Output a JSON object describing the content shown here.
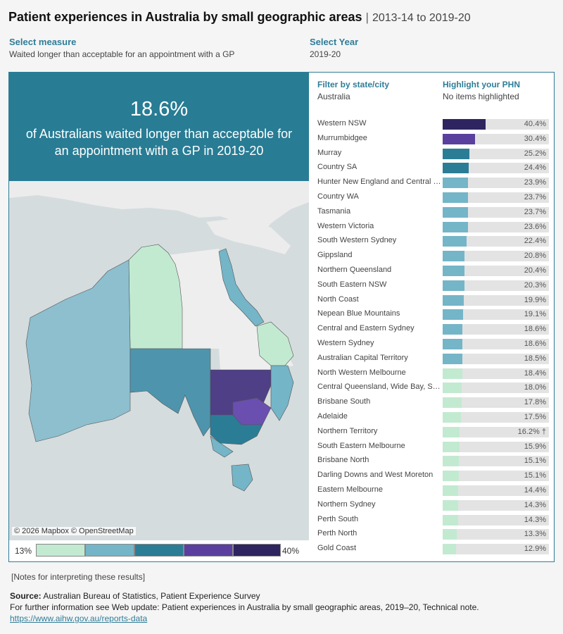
{
  "header": {
    "title": "Patient experiences in Australia by small geographic areas",
    "separator": "|",
    "range": "2013-14 to 2019-20"
  },
  "controls": {
    "measure": {
      "label": "Select measure",
      "value": "Waited longer than acceptable for an appointment with a GP"
    },
    "year": {
      "label": "Select Year",
      "value": "2019-20"
    }
  },
  "headline": {
    "percent": "18.6%",
    "text": "of Australians waited longer than acceptable for an appointment with a GP in 2019-20"
  },
  "map": {
    "credit": "© 2026 Mapbox © OpenStreetMap"
  },
  "legend": {
    "min_label": "13%",
    "max_label": "40%",
    "colors": [
      "#c2ead0",
      "#74b5c8",
      "#2b7d96",
      "#5a3f9e",
      "#2d2460"
    ]
  },
  "filters": {
    "state": {
      "label": "Filter by state/city",
      "value": "Australia"
    },
    "phn": {
      "label": "Highlight your PHN",
      "value": "No items highlighted"
    }
  },
  "chart_data": {
    "type": "bar",
    "orientation": "horizontal",
    "title": "",
    "xlabel": "",
    "ylabel": "",
    "xlim": [
      0,
      100
    ],
    "categories": [
      "Western NSW",
      "Murrumbidgee",
      "Murray",
      "Country SA",
      "Hunter New England and Central Coast",
      "Country WA",
      "Tasmania",
      "Western Victoria",
      "South Western Sydney",
      "Gippsland",
      "Northern Queensland",
      "South Eastern NSW",
      "North Coast",
      "Nepean Blue Mountains",
      "Central and Eastern Sydney",
      "Western Sydney",
      "Australian Capital Territory",
      "North Western Melbourne",
      "Central Queensland, Wide Bay, Sunshine Coast",
      "Brisbane South",
      "Adelaide",
      "Northern Territory",
      "South Eastern Melbourne",
      "Brisbane North",
      "Darling Downs and West Moreton",
      "Eastern Melbourne",
      "Northern Sydney",
      "Perth South",
      "Perth North",
      "Gold Coast"
    ],
    "values": [
      40.4,
      30.4,
      25.2,
      24.4,
      23.9,
      23.7,
      23.7,
      23.6,
      22.4,
      20.8,
      20.4,
      20.3,
      19.9,
      19.1,
      18.6,
      18.6,
      18.5,
      18.4,
      18.0,
      17.8,
      17.5,
      16.2,
      15.9,
      15.1,
      15.1,
      14.4,
      14.3,
      14.3,
      13.3,
      12.9
    ],
    "value_labels": [
      "40.4%",
      "30.4%",
      "25.2%",
      "24.4%",
      "23.9%",
      "23.7%",
      "23.7%",
      "23.6%",
      "22.4%",
      "20.8%",
      "20.4%",
      "20.3%",
      "19.9%",
      "19.1%",
      "18.6%",
      "18.6%",
      "18.5%",
      "18.4%",
      "18.0%",
      "17.8%",
      "17.5%",
      "16.2% †",
      "15.9%",
      "15.1%",
      "15.1%",
      "14.4%",
      "14.3%",
      "14.3%",
      "13.3%",
      "12.9%"
    ],
    "colors": [
      "#2d2460",
      "#5a3f9e",
      "#2b7d96",
      "#2b7d96",
      "#74b5c8",
      "#74b5c8",
      "#74b5c8",
      "#74b5c8",
      "#74b5c8",
      "#74b5c8",
      "#74b5c8",
      "#74b5c8",
      "#74b5c8",
      "#74b5c8",
      "#74b5c8",
      "#74b5c8",
      "#74b5c8",
      "#c2ead0",
      "#c2ead0",
      "#c2ead0",
      "#c2ead0",
      "#c2ead0",
      "#c2ead0",
      "#c2ead0",
      "#c2ead0",
      "#c2ead0",
      "#c2ead0",
      "#c2ead0",
      "#c2ead0",
      "#c2ead0"
    ],
    "grid": false,
    "legend": "bottom-left"
  },
  "footer": {
    "notes_link": "[Notes for interpreting these results]",
    "source_label": "Source:",
    "source_text": "Australian Bureau of Statistics, Patient Experience Survey",
    "info_text": "For further information see Web update: Patient experiences in Australia by small geographic areas, 2019–20, Technical note.",
    "url": "https://www.aihw.gov.au/reports-data"
  }
}
